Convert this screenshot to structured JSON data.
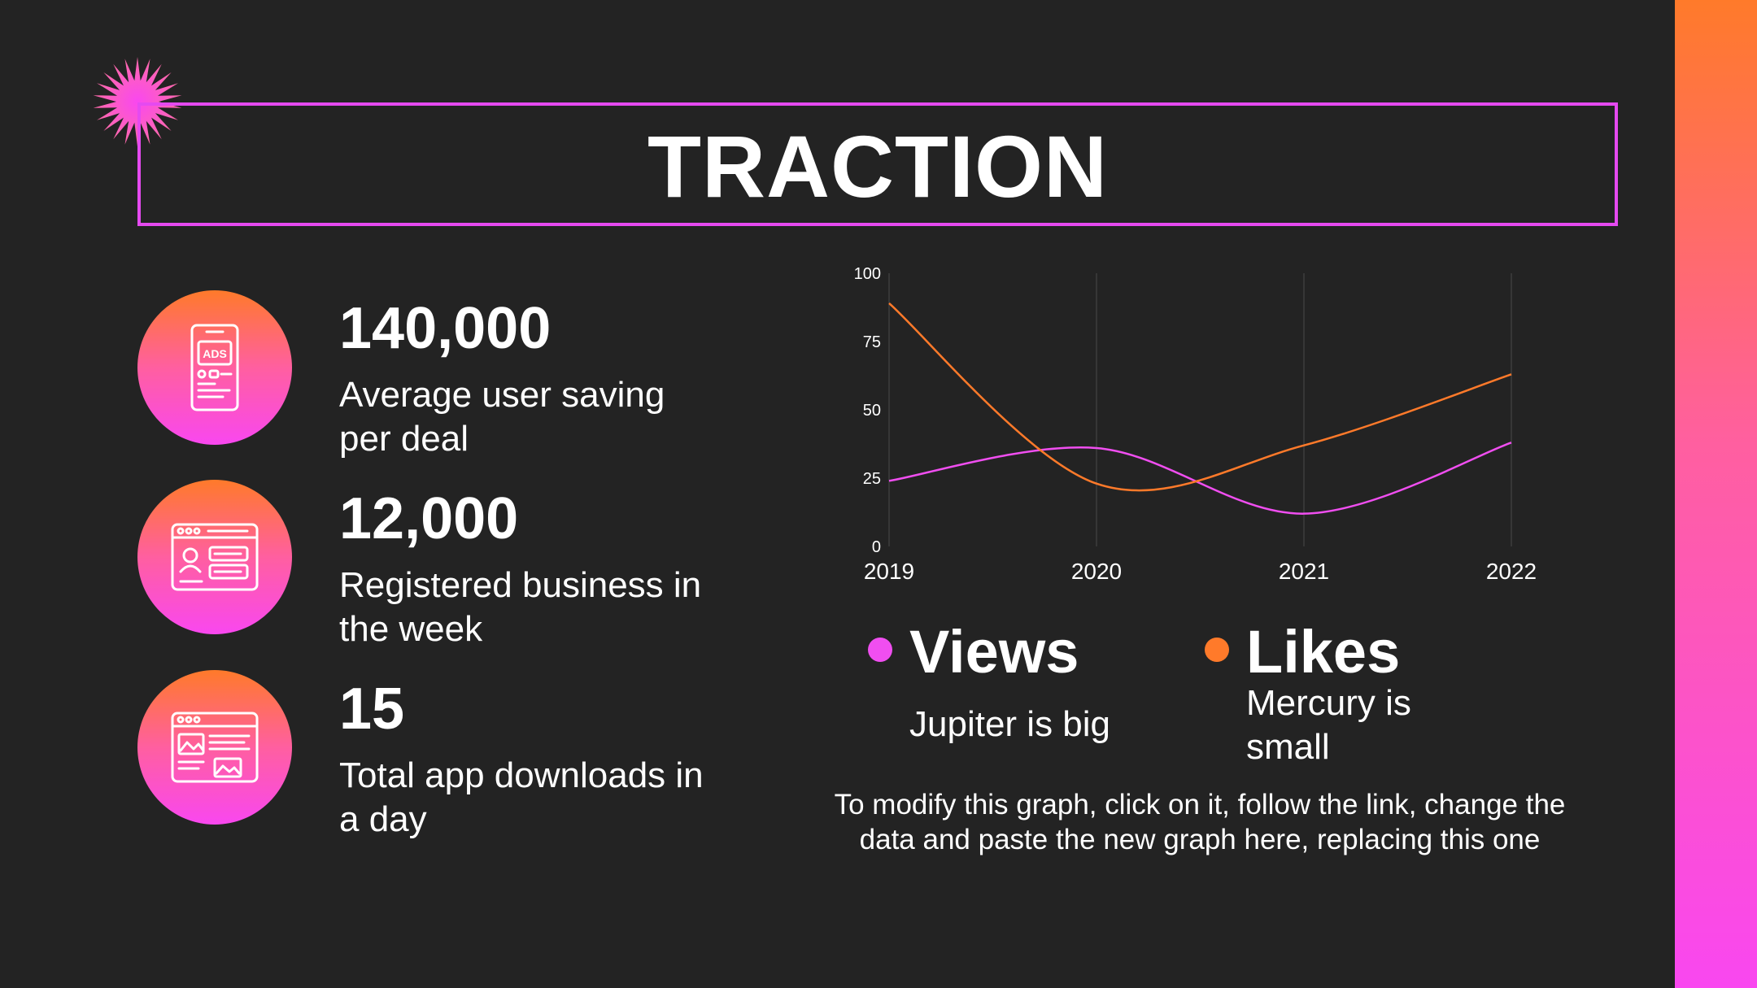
{
  "slide": {
    "title": "TRACTION",
    "stats": [
      {
        "icon": "ads-phone-icon",
        "value": "140,000",
        "description": "Average user saving per deal"
      },
      {
        "icon": "business-profile-icon",
        "value": "12,000",
        "description": "Registered business in the week"
      },
      {
        "icon": "app-download-icon",
        "value": "15",
        "description": "Total app downloads in a day"
      }
    ],
    "legend": [
      {
        "title": "Views",
        "description": "Jupiter is big"
      },
      {
        "title": "Likes",
        "description": "Mercury is small"
      }
    ],
    "note": "To modify this graph, click on it, follow the link, change the data and paste the new graph here, replacing this one",
    "colors": {
      "background": "#232323",
      "accent_pink": "#f947f0",
      "frame_pink": "#e54af0",
      "accent_orange": "#ff7a2a"
    }
  },
  "chart_data": {
    "type": "line",
    "x": [
      "2019",
      "2020",
      "2021",
      "2022"
    ],
    "series": [
      {
        "name": "Views",
        "color": "#f04ef0",
        "values": [
          24,
          36,
          12,
          38
        ]
      },
      {
        "name": "Likes",
        "color": "#ff7a2a",
        "values": [
          89,
          23,
          37,
          63
        ]
      }
    ],
    "ylim": [
      0,
      100
    ],
    "yticks": [
      0,
      25,
      50,
      75,
      100
    ],
    "grid": "vertical",
    "legend": "bottom"
  }
}
